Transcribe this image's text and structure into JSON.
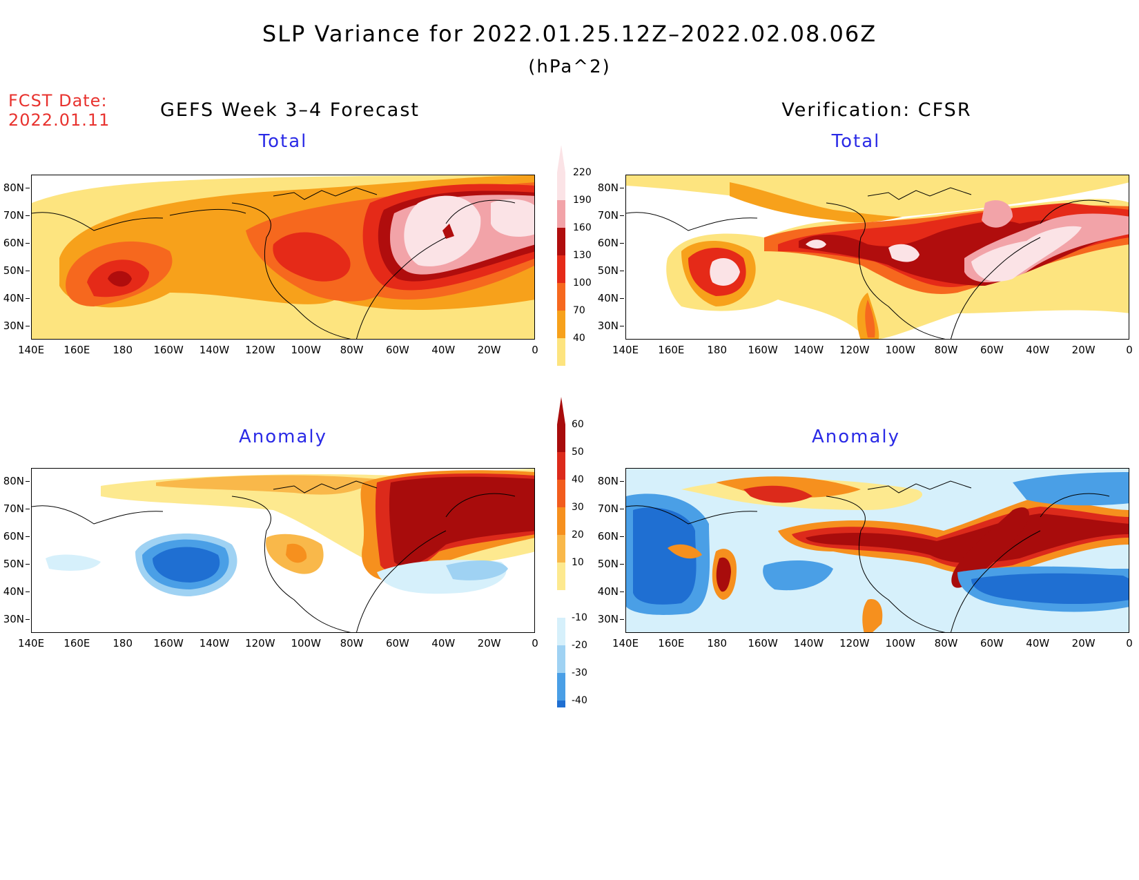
{
  "header": {
    "title": "SLP Variance for 2022.01.25.12Z–2022.02.08.06Z",
    "units": "(hPa^2)",
    "fcst_label": "FCST Date:",
    "fcst_date": "2022.01.11"
  },
  "columns": {
    "left": "GEFS Week 3–4 Forecast",
    "right": "Verification: CFSR"
  },
  "panels": {
    "total": "Total",
    "anomaly": "Anomaly"
  },
  "lat_labels": [
    "80N",
    "70N",
    "60N",
    "50N",
    "40N",
    "30N"
  ],
  "lon_labels": [
    "140E",
    "160E",
    "180",
    "160W",
    "140W",
    "120W",
    "100W",
    "80W",
    "60W",
    "40W",
    "20W",
    "0"
  ],
  "colorbar_total": {
    "levels": [
      "220",
      "190",
      "160",
      "130",
      "100",
      "70",
      "40"
    ],
    "colors": [
      "#fbe3e6",
      "#f2a3a8",
      "#b00d0d",
      "#e52a18",
      "#f6681e",
      "#f7a11b",
      "#fde47f"
    ]
  },
  "colorbar_anom": {
    "levels": [
      "60",
      "50",
      "40",
      "30",
      "20",
      "10",
      "-10",
      "-20",
      "-30",
      "-40"
    ],
    "colors_warm": [
      "#a80c0c",
      "#dc2a1b",
      "#f25c1d",
      "#f6901e",
      "#f9b84a",
      "#fde98f"
    ],
    "colors_cool": [
      "#d6f0fb",
      "#9fd2f3",
      "#4a9fe6",
      "#1f6fd2",
      "#1656b8"
    ]
  }
}
